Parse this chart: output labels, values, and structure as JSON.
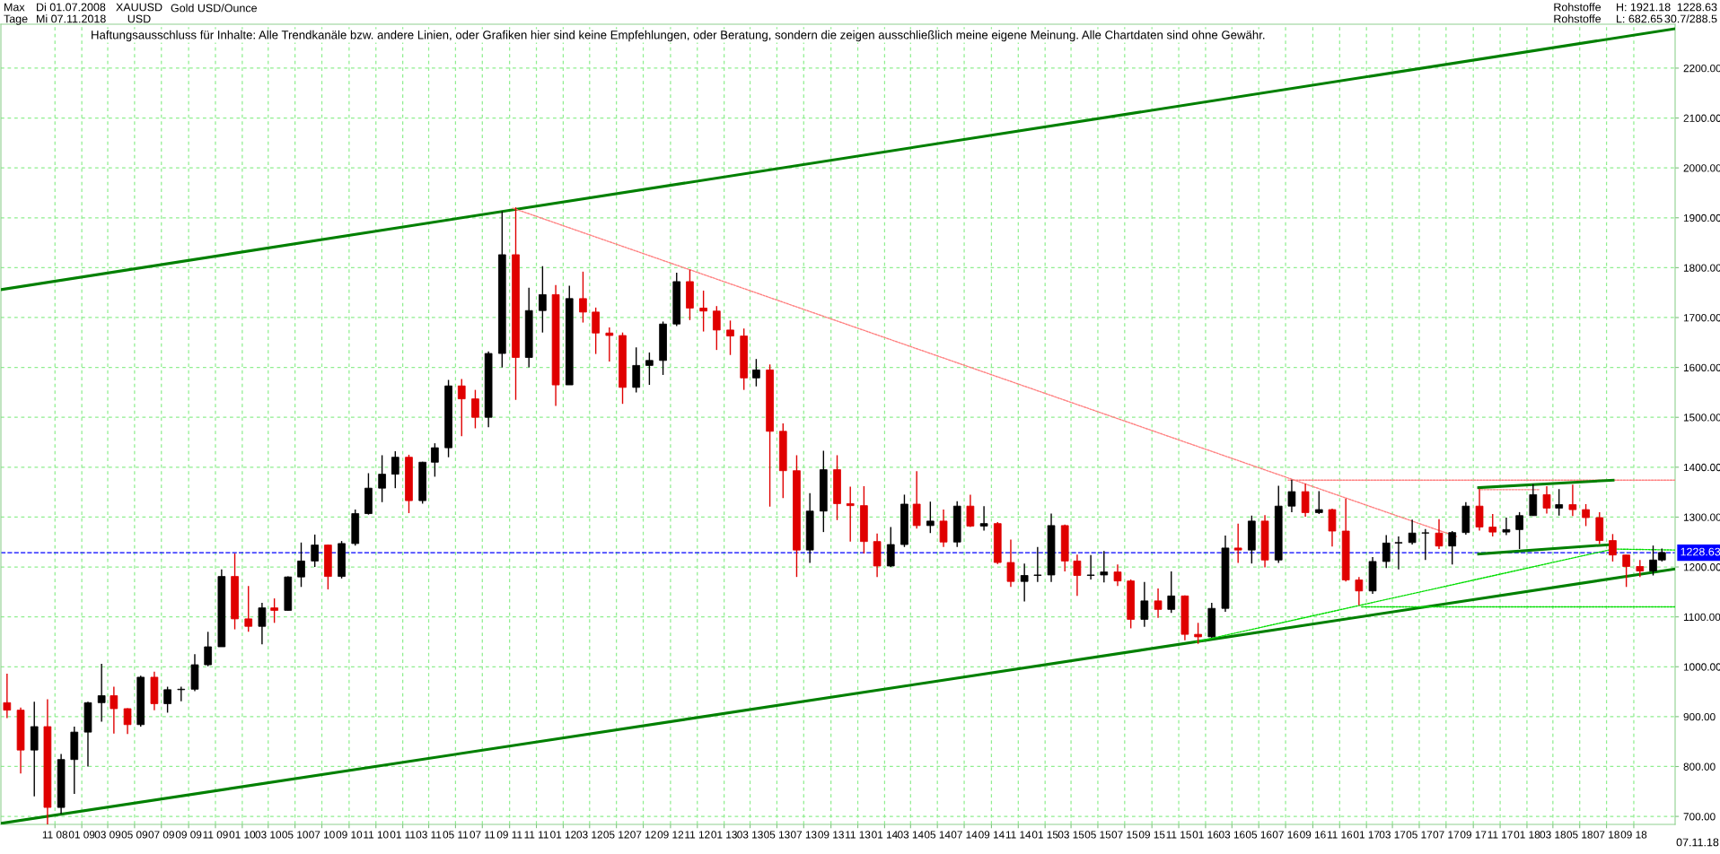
{
  "chart_data": {
    "type": "candlestick",
    "title": "Gold USD/Ounce",
    "subtitle": "Haftungsausschluss für Inhalte: Alle Trendkanäle bzw. andere Linien, oder Grafiken hier sind keine Empfehlungen, oder Beratung, sondern die zeigen ausschließlich meine eigene Meinung. Alle Chartdaten sind ohne Gewähr.",
    "annotations": [
      "Max",
      "Tage",
      "Di 01.07.2008",
      "Mi 07.11.2018",
      "XAUUSD",
      "USD",
      "Rohstoffe",
      "Rohstoffe",
      "H: 1921.18",
      "L: 682.65",
      "1228.63",
      "30.7/288.5",
      "07.11.18"
    ],
    "colors": [
      "#e00000",
      "#e00000",
      "#000000",
      "#e00000",
      "#000000",
      "#000000",
      "#000000",
      "#000000",
      "#e00000",
      "#e00000",
      "#000000",
      "#e00000",
      "#000000",
      "#000000",
      "#000000",
      "#000000",
      "#000000",
      "#e00000",
      "#e00000",
      "#000000",
      "#e00000",
      "#000000",
      "#000000",
      "#000000",
      "#e00000",
      "#000000",
      "#000000",
      "#000000",
      "#000000",
      "#000000",
      "#e00000",
      "#000000",
      "#000000",
      "#000000",
      "#e00000",
      "#e00000",
      "#000000",
      "#000000",
      "#e00000",
      "#000000",
      "#000000",
      "#e00000",
      "#000000",
      "#e00000",
      "#e00000",
      "#e00000",
      "#e00000",
      "#000000",
      "#000000",
      "#000000",
      "#000000",
      "#e00000",
      "#e00000",
      "#e00000",
      "#e00000",
      "#e00000",
      "#000000",
      "#e00000",
      "#e00000",
      "#e00000",
      "#000000",
      "#000000",
      "#e00000",
      "#e00000",
      "#e00000",
      "#e00000",
      "#000000",
      "#000000",
      "#e00000",
      "#000000",
      "#e00000",
      "#000000",
      "#e00000",
      "#000000",
      "#e00000",
      "#e00000",
      "#000000",
      "#000000",
      "#000000",
      "#e00000",
      "#e00000",
      "#000000",
      "#000000",
      "#e00000",
      "#e00000",
      "#000000",
      "#e00000",
      "#000000",
      "#e00000",
      "#e00000",
      "#000000",
      "#000000",
      "#e00000",
      "#000000",
      "#e00000",
      "#000000",
      "#000000",
      "#e00000",
      "#000000",
      "#e00000",
      "#e00000",
      "#e00000",
      "#000000",
      "#000000",
      "#000000",
      "#000000",
      "#000000",
      "#e00000",
      "#000000",
      "#000000",
      "#e00000",
      "#e00000",
      "#000000",
      "#000000",
      "#000000",
      "#e00000",
      "#000000",
      "#e00000",
      "#e00000",
      "#e00000",
      "#e00000",
      "#e00000",
      "#e00000",
      "#000000",
      "#000000"
    ],
    "x": [
      "2008-07-15",
      "2008-08-15",
      "2008-09-15",
      "2008-10-15",
      "2008-11-15",
      "2008-12-15",
      "2009-01-15",
      "2009-02-15",
      "2009-03-15",
      "2009-04-15",
      "2009-05-15",
      "2009-06-15",
      "2009-07-15",
      "2009-08-15",
      "2009-09-15",
      "2009-10-15",
      "2009-11-15",
      "2009-12-15",
      "2010-01-15",
      "2010-02-15",
      "2010-03-15",
      "2010-04-15",
      "2010-05-15",
      "2010-06-15",
      "2010-07-15",
      "2010-08-15",
      "2010-09-15",
      "2010-10-15",
      "2010-11-15",
      "2010-12-15",
      "2011-01-15",
      "2011-02-15",
      "2011-03-15",
      "2011-04-15",
      "2011-05-15",
      "2011-06-15",
      "2011-07-15",
      "2011-08-15",
      "2011-09-15",
      "2011-10-15",
      "2011-11-15",
      "2011-12-15",
      "2012-01-15",
      "2012-02-15",
      "2012-03-15",
      "2012-04-15",
      "2012-05-15",
      "2012-06-15",
      "2012-07-15",
      "2012-08-15",
      "2012-09-15",
      "2012-10-15",
      "2012-11-15",
      "2012-12-15",
      "2013-01-15",
      "2013-02-15",
      "2013-03-15",
      "2013-04-15",
      "2013-05-15",
      "2013-06-15",
      "2013-07-15",
      "2013-08-15",
      "2013-09-15",
      "2013-10-15",
      "2013-11-15",
      "2013-12-15",
      "2014-01-15",
      "2014-02-15",
      "2014-03-15",
      "2014-04-15",
      "2014-05-15",
      "2014-06-15",
      "2014-07-15",
      "2014-08-15",
      "2014-09-15",
      "2014-10-15",
      "2014-11-15",
      "2014-12-15",
      "2015-01-15",
      "2015-02-15",
      "2015-03-15",
      "2015-04-15",
      "2015-05-15",
      "2015-06-15",
      "2015-07-15",
      "2015-08-15",
      "2015-09-15",
      "2015-10-15",
      "2015-11-15",
      "2015-12-15",
      "2016-01-15",
      "2016-02-15",
      "2016-03-15",
      "2016-04-15",
      "2016-05-15",
      "2016-06-15",
      "2016-07-15",
      "2016-08-15",
      "2016-09-15",
      "2016-10-15",
      "2016-11-15",
      "2016-12-15",
      "2017-01-15",
      "2017-02-15",
      "2017-03-15",
      "2017-04-15",
      "2017-05-15",
      "2017-06-15",
      "2017-07-15",
      "2017-08-15",
      "2017-09-15",
      "2017-10-15",
      "2017-11-15",
      "2017-12-15",
      "2018-01-15",
      "2018-02-15",
      "2018-03-15",
      "2018-04-15",
      "2018-05-15",
      "2018-06-15",
      "2018-07-15",
      "2018-08-15",
      "2018-09-15",
      "2018-10-15",
      "2018-11-04"
    ],
    "ohlc": [
      [
        928,
        986,
        897,
        913
      ],
      [
        913,
        918,
        786,
        833
      ],
      [
        833,
        930,
        740,
        880
      ],
      [
        880,
        935,
        683,
        718
      ],
      [
        718,
        825,
        705,
        814
      ],
      [
        814,
        880,
        745,
        869
      ],
      [
        869,
        930,
        800,
        928
      ],
      [
        928,
        1006,
        890,
        942
      ],
      [
        942,
        960,
        866,
        916
      ],
      [
        916,
        917,
        865,
        884
      ],
      [
        884,
        982,
        880,
        979
      ],
      [
        979,
        990,
        913,
        926
      ],
      [
        926,
        960,
        908,
        954
      ],
      [
        954,
        960,
        931,
        955
      ],
      [
        955,
        1025,
        951,
        1004
      ],
      [
        1004,
        1070,
        1001,
        1040
      ],
      [
        1040,
        1195,
        1040,
        1181
      ],
      [
        1181,
        1227,
        1075,
        1096
      ],
      [
        1096,
        1162,
        1070,
        1081
      ],
      [
        1081,
        1128,
        1045,
        1118
      ],
      [
        1118,
        1137,
        1088,
        1113
      ],
      [
        1113,
        1181,
        1113,
        1180
      ],
      [
        1180,
        1249,
        1160,
        1212
      ],
      [
        1212,
        1265,
        1200,
        1244
      ],
      [
        1244,
        1245,
        1155,
        1181
      ],
      [
        1181,
        1252,
        1177,
        1247
      ],
      [
        1247,
        1315,
        1243,
        1307
      ],
      [
        1307,
        1388,
        1305,
        1358
      ],
      [
        1358,
        1424,
        1330,
        1386
      ],
      [
        1386,
        1432,
        1358,
        1420
      ],
      [
        1420,
        1425,
        1308,
        1333
      ],
      [
        1333,
        1411,
        1327,
        1410
      ],
      [
        1410,
        1448,
        1381,
        1439
      ],
      [
        1439,
        1575,
        1420,
        1563
      ],
      [
        1563,
        1577,
        1462,
        1537
      ],
      [
        1537,
        1555,
        1478,
        1500
      ],
      [
        1500,
        1632,
        1480,
        1628
      ],
      [
        1628,
        1913,
        1600,
        1826
      ],
      [
        1826,
        1921,
        1535,
        1620
      ],
      [
        1620,
        1760,
        1600,
        1714
      ],
      [
        1714,
        1803,
        1670,
        1746
      ],
      [
        1746,
        1765,
        1523,
        1565
      ],
      [
        1565,
        1764,
        1565,
        1738
      ],
      [
        1738,
        1792,
        1690,
        1711
      ],
      [
        1711,
        1720,
        1627,
        1669
      ],
      [
        1669,
        1680,
        1612,
        1664
      ],
      [
        1664,
        1670,
        1527,
        1560
      ],
      [
        1560,
        1640,
        1550,
        1604
      ],
      [
        1604,
        1630,
        1565,
        1614
      ],
      [
        1614,
        1692,
        1585,
        1687
      ],
      [
        1687,
        1790,
        1683,
        1772
      ],
      [
        1772,
        1796,
        1695,
        1719
      ],
      [
        1719,
        1754,
        1672,
        1713
      ],
      [
        1713,
        1723,
        1635,
        1675
      ],
      [
        1675,
        1694,
        1625,
        1663
      ],
      [
        1663,
        1678,
        1555,
        1579
      ],
      [
        1579,
        1617,
        1562,
        1595
      ],
      [
        1595,
        1606,
        1321,
        1472
      ],
      [
        1472,
        1488,
        1338,
        1393
      ],
      [
        1393,
        1424,
        1180,
        1234
      ],
      [
        1234,
        1348,
        1208,
        1312
      ],
      [
        1312,
        1433,
        1270,
        1395
      ],
      [
        1395,
        1424,
        1294,
        1327
      ],
      [
        1327,
        1361,
        1251,
        1323
      ],
      [
        1323,
        1362,
        1227,
        1251
      ],
      [
        1251,
        1267,
        1180,
        1202
      ],
      [
        1202,
        1280,
        1200,
        1245
      ],
      [
        1245,
        1345,
        1240,
        1326
      ],
      [
        1326,
        1392,
        1277,
        1283
      ],
      [
        1283,
        1331,
        1268,
        1292
      ],
      [
        1292,
        1315,
        1240,
        1250
      ],
      [
        1250,
        1332,
        1240,
        1322
      ],
      [
        1322,
        1345,
        1280,
        1282
      ],
      [
        1282,
        1322,
        1273,
        1287
      ],
      [
        1287,
        1290,
        1206,
        1209
      ],
      [
        1209,
        1255,
        1160,
        1171
      ],
      [
        1171,
        1207,
        1131,
        1183
      ],
      [
        1183,
        1240,
        1170,
        1184
      ],
      [
        1184,
        1307,
        1170,
        1283
      ],
      [
        1283,
        1285,
        1191,
        1212
      ],
      [
        1212,
        1225,
        1142,
        1183
      ],
      [
        1183,
        1224,
        1175,
        1184
      ],
      [
        1184,
        1232,
        1169,
        1190
      ],
      [
        1190,
        1205,
        1162,
        1172
      ],
      [
        1172,
        1175,
        1077,
        1095
      ],
      [
        1095,
        1170,
        1080,
        1132
      ],
      [
        1132,
        1157,
        1098,
        1115
      ],
      [
        1115,
        1191,
        1108,
        1142
      ],
      [
        1142,
        1143,
        1053,
        1065
      ],
      [
        1065,
        1088,
        1046,
        1060
      ],
      [
        1060,
        1128,
        1058,
        1117
      ],
      [
        1117,
        1263,
        1110,
        1238
      ],
      [
        1238,
        1287,
        1208,
        1234
      ],
      [
        1234,
        1303,
        1207,
        1292
      ],
      [
        1292,
        1304,
        1199,
        1214
      ],
      [
        1214,
        1363,
        1208,
        1322
      ],
      [
        1322,
        1375,
        1310,
        1351
      ],
      [
        1351,
        1367,
        1301,
        1309
      ],
      [
        1309,
        1352,
        1306,
        1315
      ],
      [
        1315,
        1317,
        1241,
        1272
      ],
      [
        1272,
        1337,
        1171,
        1174
      ],
      [
        1174,
        1180,
        1123,
        1152
      ],
      [
        1152,
        1220,
        1146,
        1211
      ],
      [
        1211,
        1264,
        1198,
        1248
      ],
      [
        1248,
        1261,
        1195,
        1249
      ],
      [
        1249,
        1295,
        1245,
        1268
      ],
      [
        1268,
        1276,
        1214,
        1268
      ],
      [
        1268,
        1296,
        1236,
        1242
      ],
      [
        1242,
        1272,
        1205,
        1269
      ],
      [
        1269,
        1330,
        1265,
        1322
      ],
      [
        1322,
        1357,
        1273,
        1280
      ],
      [
        1280,
        1306,
        1261,
        1270
      ],
      [
        1270,
        1299,
        1264,
        1275
      ],
      [
        1275,
        1310,
        1236,
        1303
      ],
      [
        1303,
        1366,
        1303,
        1345
      ],
      [
        1345,
        1362,
        1307,
        1318
      ],
      [
        1318,
        1356,
        1303,
        1325
      ],
      [
        1325,
        1365,
        1302,
        1315
      ],
      [
        1315,
        1326,
        1282,
        1299
      ],
      [
        1299,
        1310,
        1246,
        1253
      ],
      [
        1253,
        1266,
        1211,
        1224
      ],
      [
        1224,
        1224,
        1160,
        1201
      ],
      [
        1201,
        1214,
        1180,
        1192
      ],
      [
        1192,
        1243,
        1183,
        1214
      ],
      [
        1214,
        1237,
        1211,
        1229
      ]
    ],
    "series": [
      {
        "type": "line",
        "color": "#008000",
        "line_style": "solid",
        "x": [
          "2008-07-01",
          "2018-12-04"
        ],
        "values": [
          1756,
          2279
        ]
      },
      {
        "type": "line",
        "color": "#008000",
        "line_style": "solid",
        "x": [
          "2008-07-01",
          "2018-12-04"
        ],
        "values": [
          686,
          1196
        ]
      },
      {
        "type": "line",
        "color": "#ff8080",
        "line_style": "dotted",
        "x": [
          "2011-09-06",
          "2017-07-25"
        ],
        "values": [
          1920,
          1261
        ]
      },
      {
        "type": "line",
        "color": "#ff8080",
        "line_style": "dotted",
        "x": [
          "2016-07-07",
          "2018-12-04"
        ],
        "values": [
          1374,
          1374
        ]
      },
      {
        "type": "line",
        "color": "#ff8080",
        "line_style": "dotted",
        "x": [
          "2017-09-16",
          "2018-01-28"
        ],
        "values": [
          1355,
          1355
        ]
      },
      {
        "type": "line",
        "color": "#008000",
        "line_style": "solid",
        "x": [
          "2017-09-13",
          "2018-07-16"
        ],
        "values": [
          1359,
          1374
        ]
      },
      {
        "type": "line",
        "color": "#008000",
        "line_style": "solid",
        "x": [
          "2017-09-13",
          "2018-07-12"
        ],
        "values": [
          1226,
          1245
        ]
      },
      {
        "type": "line",
        "color": "#00dd00",
        "line_style": "dotted",
        "x": [
          "2015-12-10",
          "2018-07-16",
          "2018-12-04"
        ],
        "values": [
          1050,
          1236,
          1234
        ]
      },
      {
        "type": "line",
        "color": "#00dd00",
        "line_style": "dotted",
        "x": [
          "2016-12-19",
          "2018-12-04"
        ],
        "values": [
          1120,
          1120
        ]
      }
    ],
    "ref_lines": [
      {
        "axis": "y",
        "value": 1228.63,
        "label": "1228.63",
        "color": "#0000ff",
        "line_style": "dashed"
      }
    ],
    "xlim": [
      "2008-07-01",
      "2018-12-04"
    ],
    "ylim": [
      684,
      2288
    ],
    "yticks": [
      {
        "value": 700,
        "label": "700.00"
      },
      {
        "value": 800,
        "label": "800.00"
      },
      {
        "value": 900,
        "label": "900.00"
      },
      {
        "value": 1000,
        "label": "1000.00"
      },
      {
        "value": 1100,
        "label": "1100.00"
      },
      {
        "value": 1200,
        "label": "1200.00"
      },
      {
        "value": 1300,
        "label": "1300.00"
      },
      {
        "value": 1400,
        "label": "1400.00"
      },
      {
        "value": 1500,
        "label": "1500.00"
      },
      {
        "value": 1600,
        "label": "1600.00"
      },
      {
        "value": 1700,
        "label": "1700.00"
      },
      {
        "value": 1800,
        "label": "1800.00"
      },
      {
        "value": 1900,
        "label": "1900.00"
      },
      {
        "value": 2000,
        "label": "2000.00"
      },
      {
        "value": 2100,
        "label": "2100.00"
      },
      {
        "value": 2200,
        "label": "2200.00"
      }
    ],
    "xticks": [
      {
        "value": "2008-11-01",
        "label": "11 08"
      },
      {
        "value": "2009-01-01",
        "label": "01 09"
      },
      {
        "value": "2009-03-01",
        "label": "03 09"
      },
      {
        "value": "2009-05-01",
        "label": "05 09"
      },
      {
        "value": "2009-07-01",
        "label": "07 09"
      },
      {
        "value": "2009-09-01",
        "label": "09 09"
      },
      {
        "value": "2009-11-01",
        "label": "11 09"
      },
      {
        "value": "2010-01-01",
        "label": "01 10"
      },
      {
        "value": "2010-03-01",
        "label": "03 10"
      },
      {
        "value": "2010-05-01",
        "label": "05 10"
      },
      {
        "value": "2010-07-01",
        "label": "07 10"
      },
      {
        "value": "2010-09-01",
        "label": "09 10"
      },
      {
        "value": "2010-11-01",
        "label": "11 10"
      },
      {
        "value": "2011-01-01",
        "label": "01 11"
      },
      {
        "value": "2011-03-01",
        "label": "03 11"
      },
      {
        "value": "2011-05-01",
        "label": "05 11"
      },
      {
        "value": "2011-07-01",
        "label": "07 11"
      },
      {
        "value": "2011-09-01",
        "label": "09 11"
      },
      {
        "value": "2011-11-01",
        "label": "11 11"
      },
      {
        "value": "2012-01-01",
        "label": "01 12"
      },
      {
        "value": "2012-03-01",
        "label": "03 12"
      },
      {
        "value": "2012-05-01",
        "label": "05 12"
      },
      {
        "value": "2012-07-01",
        "label": "07 12"
      },
      {
        "value": "2012-09-01",
        "label": "09 12"
      },
      {
        "value": "2012-11-01",
        "label": "11 12"
      },
      {
        "value": "2013-01-01",
        "label": "01 13"
      },
      {
        "value": "2013-03-01",
        "label": "03 13"
      },
      {
        "value": "2013-05-01",
        "label": "05 13"
      },
      {
        "value": "2013-07-01",
        "label": "07 13"
      },
      {
        "value": "2013-09-01",
        "label": "09 13"
      },
      {
        "value": "2013-11-01",
        "label": "11 13"
      },
      {
        "value": "2014-01-01",
        "label": "01 14"
      },
      {
        "value": "2014-03-01",
        "label": "03 14"
      },
      {
        "value": "2014-05-01",
        "label": "05 14"
      },
      {
        "value": "2014-07-01",
        "label": "07 14"
      },
      {
        "value": "2014-09-01",
        "label": "09 14"
      },
      {
        "value": "2014-11-01",
        "label": "11 14"
      },
      {
        "value": "2015-01-01",
        "label": "01 15"
      },
      {
        "value": "2015-03-01",
        "label": "03 15"
      },
      {
        "value": "2015-05-01",
        "label": "05 15"
      },
      {
        "value": "2015-07-01",
        "label": "07 15"
      },
      {
        "value": "2015-09-01",
        "label": "09 15"
      },
      {
        "value": "2015-11-01",
        "label": "11 15"
      },
      {
        "value": "2016-01-01",
        "label": "01 16"
      },
      {
        "value": "2016-03-01",
        "label": "03 16"
      },
      {
        "value": "2016-05-01",
        "label": "05 16"
      },
      {
        "value": "2016-07-01",
        "label": "07 16"
      },
      {
        "value": "2016-09-01",
        "label": "09 16"
      },
      {
        "value": "2016-11-01",
        "label": "11 16"
      },
      {
        "value": "2017-01-01",
        "label": "01 17"
      },
      {
        "value": "2017-03-01",
        "label": "03 17"
      },
      {
        "value": "2017-05-01",
        "label": "05 17"
      },
      {
        "value": "2017-07-01",
        "label": "07 17"
      },
      {
        "value": "2017-09-01",
        "label": "09 17"
      },
      {
        "value": "2017-11-01",
        "label": "11 17"
      },
      {
        "value": "2018-01-01",
        "label": "01 18"
      },
      {
        "value": "2018-03-01",
        "label": "03 18"
      },
      {
        "value": "2018-05-01",
        "label": "05 18"
      },
      {
        "value": "2018-07-01",
        "label": "07 18"
      },
      {
        "value": "2018-09-01",
        "label": "09 18"
      }
    ],
    "grid": true
  }
}
